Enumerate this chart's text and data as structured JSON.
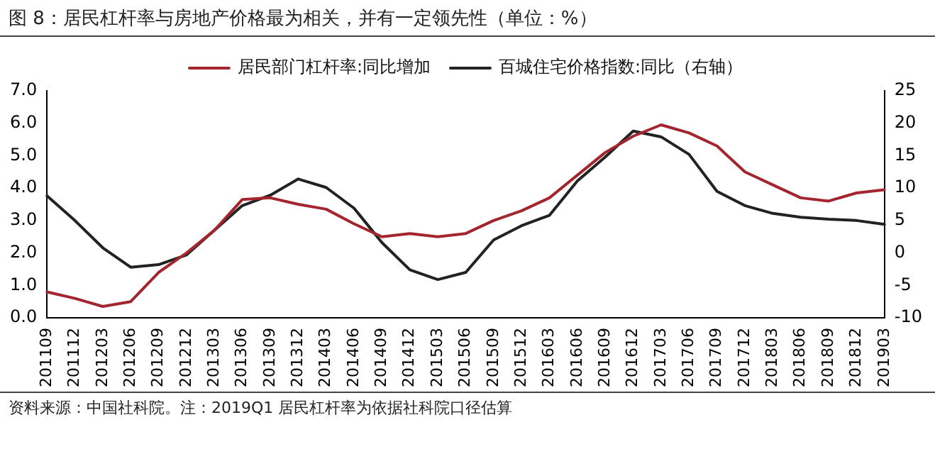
{
  "chart_data": {
    "type": "line",
    "title": "图 8：居民杠杆率与房地产价格最为相关，并有一定领先性（单位：%）",
    "annotations": [
      "资料来源：中国社科院。注：2019Q1 居民杠杆率为依据社科院口径估算"
    ],
    "categories": [
      "201109",
      "201112",
      "201203",
      "201206",
      "201209",
      "201212",
      "201303",
      "201306",
      "201309",
      "201312",
      "201403",
      "201406",
      "201409",
      "201412",
      "201503",
      "201506",
      "201509",
      "201512",
      "201603",
      "201606",
      "201609",
      "201612",
      "201703",
      "201706",
      "201709",
      "201712",
      "201803",
      "201806",
      "201809",
      "201812",
      "201903"
    ],
    "series": [
      {
        "name": "居民部门杠杆率:同比增加",
        "color": "#a3262f",
        "values": [
          0.8,
          0.6,
          0.35,
          0.5,
          1.4,
          2.0,
          2.7,
          3.65,
          3.7,
          3.5,
          3.35,
          2.9,
          2.5,
          2.6,
          2.5,
          2.6,
          3.0,
          3.3,
          3.7,
          4.4,
          5.1,
          5.6,
          5.95,
          5.7,
          5.3,
          4.5,
          4.1,
          3.7,
          3.6,
          3.85,
          3.95
        ]
      },
      {
        "name": "百城住宅价格指数:同比（右轴）",
        "color": "#222222",
        "axis": "y2",
        "values": [
          8.8,
          5.0,
          0.8,
          -2.2,
          -1.8,
          -0.3,
          3.5,
          7.3,
          8.9,
          11.4,
          10.1,
          6.9,
          1.6,
          -2.6,
          -4.1,
          -3.0,
          2.0,
          4.2,
          5.8,
          11.1,
          14.8,
          18.8,
          17.9,
          15.2,
          9.5,
          7.3,
          6.1,
          5.5,
          5.2,
          5.0,
          4.4
        ]
      }
    ],
    "ylim": [
      0,
      7
    ],
    "yticks": [
      {
        "value": 0,
        "label": "0.0"
      },
      {
        "value": 1,
        "label": "1.0"
      },
      {
        "value": 2,
        "label": "2.0"
      },
      {
        "value": 3,
        "label": "3.0"
      },
      {
        "value": 4,
        "label": "4.0"
      },
      {
        "value": 5,
        "label": "5.0"
      },
      {
        "value": 6,
        "label": "6.0"
      },
      {
        "value": 7,
        "label": "7.0"
      }
    ],
    "y2lim": [
      -10,
      25
    ],
    "y2ticks": [
      -10,
      -5,
      0,
      5,
      10,
      15,
      20,
      25
    ],
    "grid": false,
    "legend": "top",
    "marker": "none",
    "line_style": "solid"
  }
}
